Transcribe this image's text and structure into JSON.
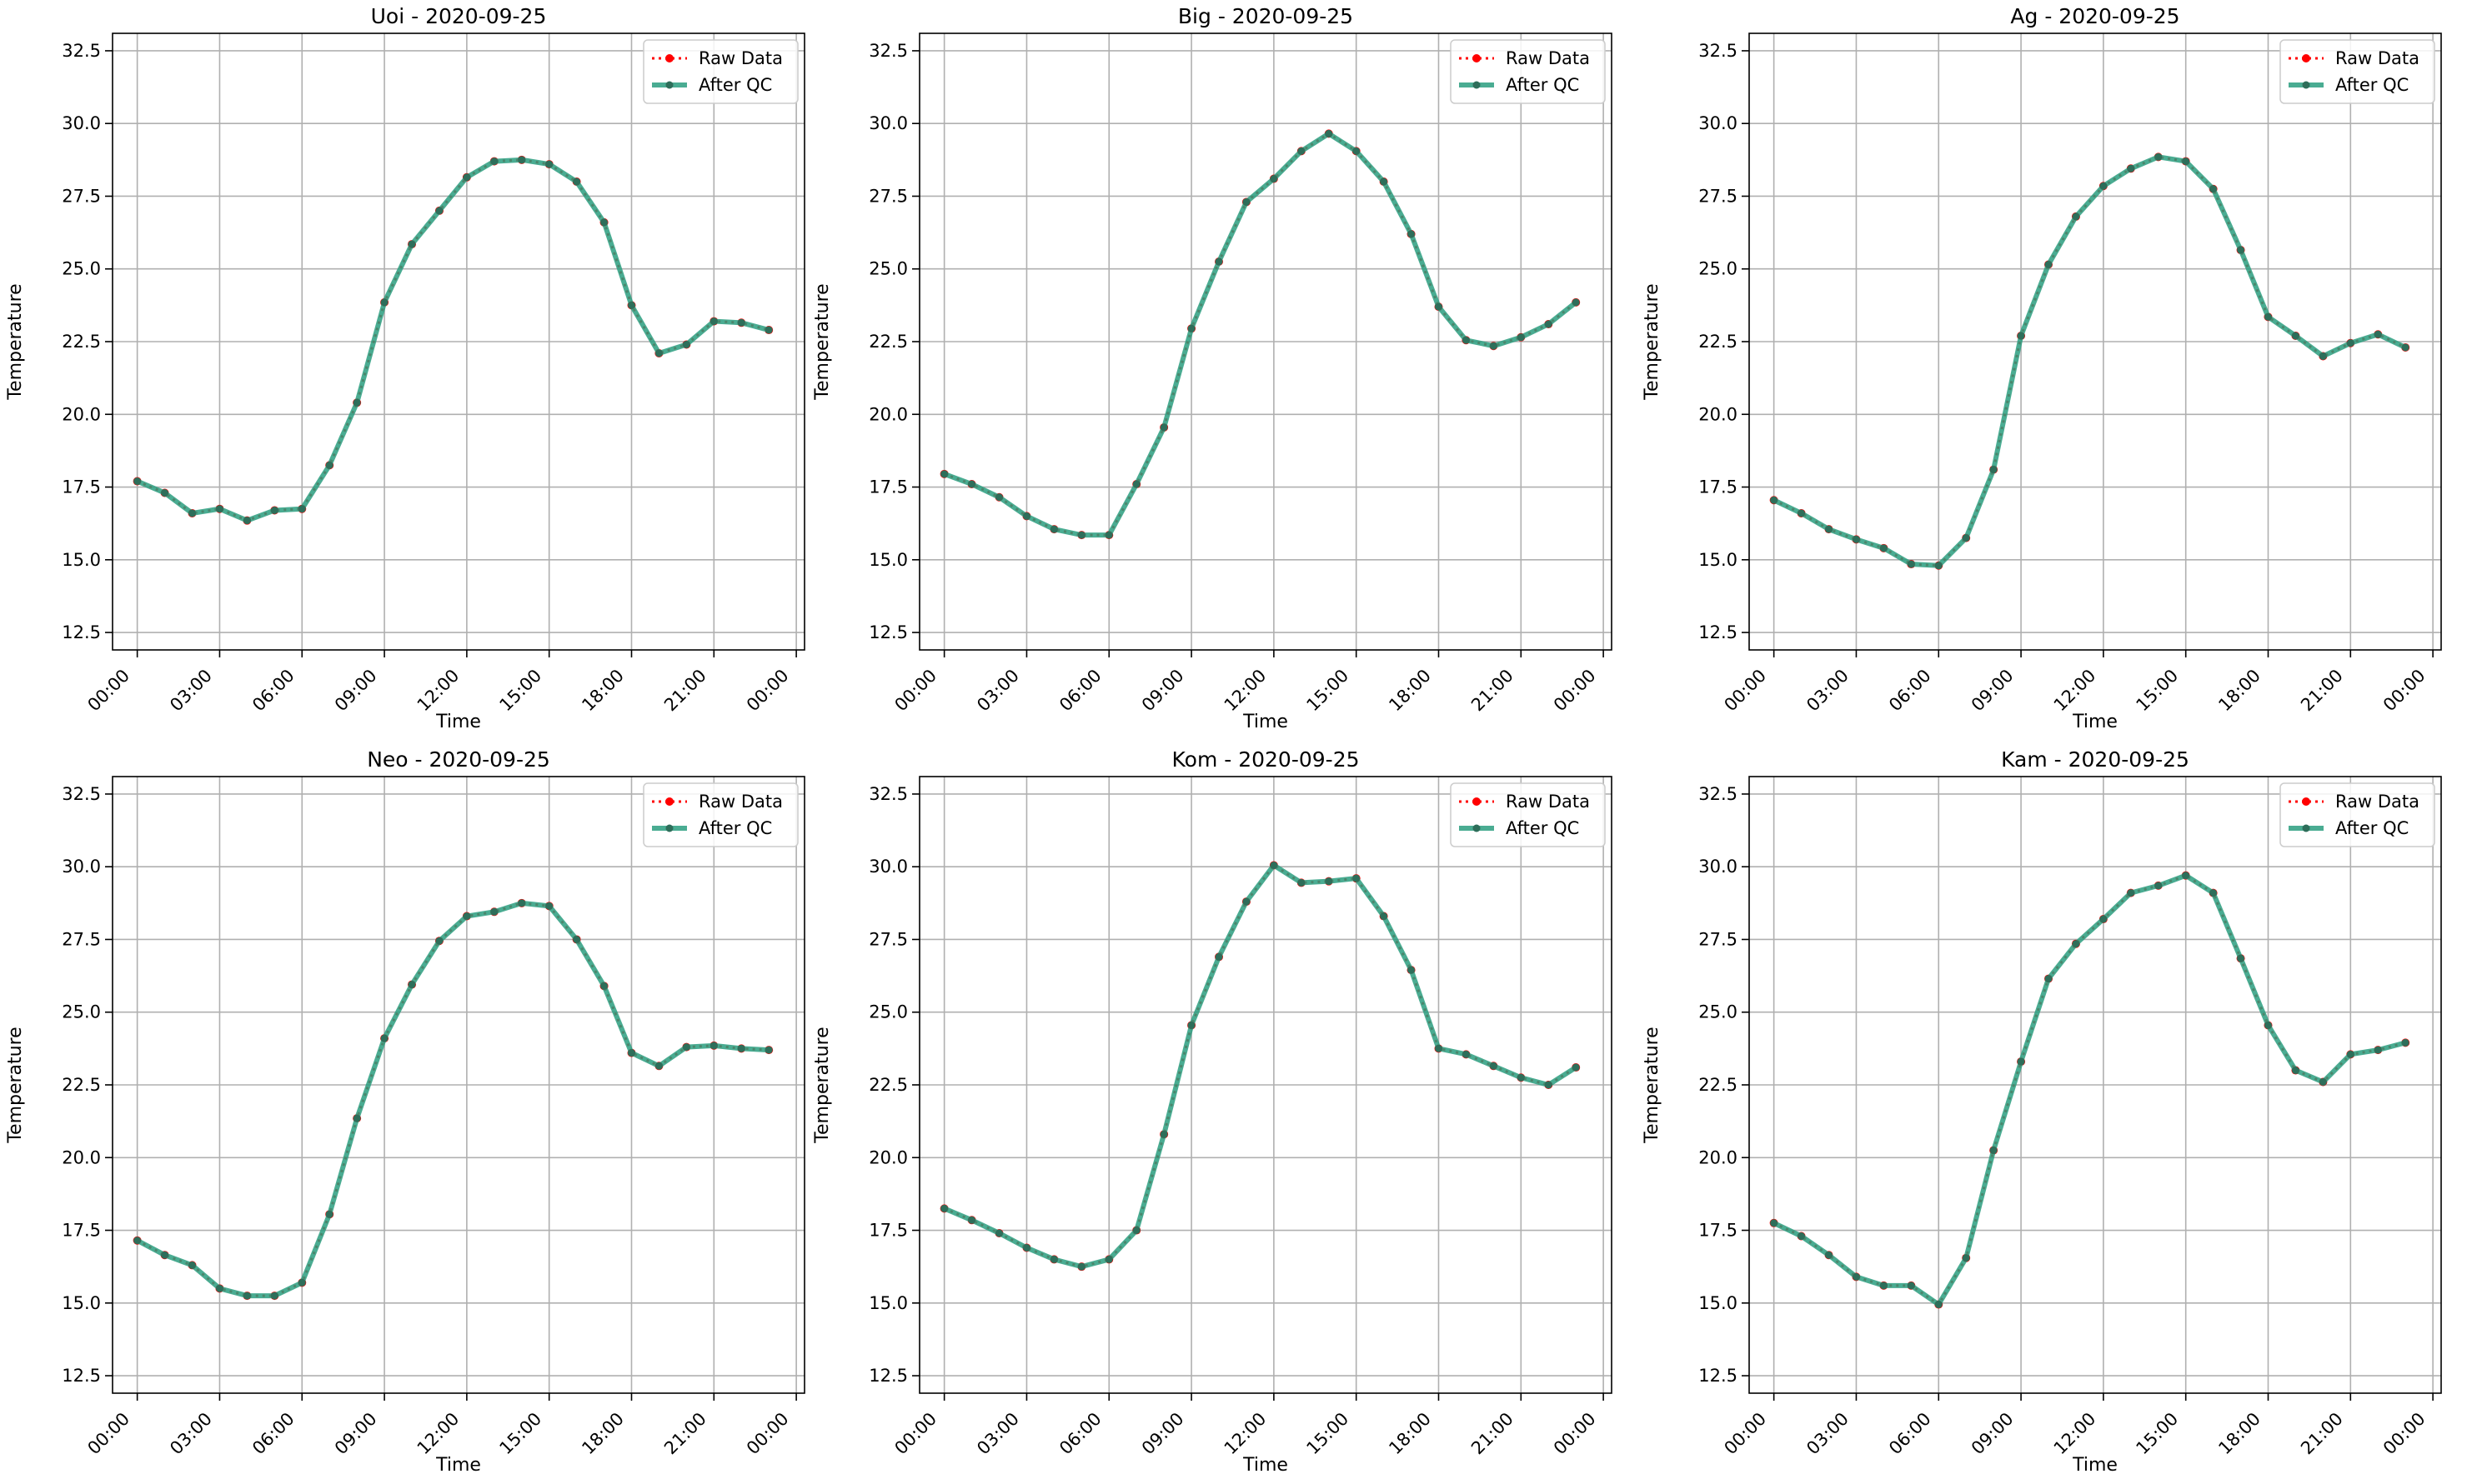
{
  "figure": {
    "background": "#ffffff"
  },
  "style": {
    "raw_color": "#ff0000",
    "qc_color": "#2a9d7f",
    "grid_color": "#b0b0b0",
    "axis_color": "#000000"
  },
  "common": {
    "xlabel": "Time",
    "ylabel": "Temperature",
    "legend": [
      "Raw Data",
      "After QC"
    ],
    "x_ticks": [
      "00:00",
      "03:00",
      "06:00",
      "09:00",
      "12:00",
      "15:00",
      "18:00",
      "21:00",
      "00:00"
    ],
    "y_ticks": [
      "12.5",
      "15.0",
      "17.5",
      "20.0",
      "22.5",
      "25.0",
      "27.5",
      "30.0",
      "32.5"
    ]
  },
  "chart_data": [
    {
      "type": "line",
      "title": "Uoi - 2020-09-25",
      "xlabel": "Time",
      "ylabel": "Temperature",
      "x": [
        0,
        1,
        2,
        3,
        4,
        5,
        6,
        7,
        8,
        9,
        10,
        11,
        12,
        13,
        14,
        15,
        16,
        17,
        18,
        19,
        20,
        21,
        22,
        23
      ],
      "xlim": [
        -0.9,
        24.3
      ],
      "ylim": [
        11.9,
        33.1
      ],
      "grid": true,
      "legend_position": "upper right",
      "series": [
        {
          "name": "Raw Data",
          "values": [
            17.7,
            17.3,
            16.6,
            16.75,
            16.35,
            16.7,
            16.75,
            18.25,
            20.4,
            23.85,
            25.85,
            27.0,
            28.15,
            28.7,
            28.75,
            28.6,
            28.0,
            26.6,
            23.75,
            22.1,
            22.4,
            23.2,
            23.15,
            22.9
          ]
        },
        {
          "name": "After QC",
          "values": [
            17.7,
            17.3,
            16.6,
            16.75,
            16.35,
            16.7,
            16.75,
            18.25,
            20.4,
            23.85,
            25.85,
            27.0,
            28.15,
            28.7,
            28.75,
            28.6,
            28.0,
            26.6,
            23.75,
            22.1,
            22.4,
            23.2,
            23.15,
            22.9
          ]
        }
      ]
    },
    {
      "type": "line",
      "title": "Big - 2020-09-25",
      "xlabel": "Time",
      "ylabel": "Temperature",
      "x": [
        0,
        1,
        2,
        3,
        4,
        5,
        6,
        7,
        8,
        9,
        10,
        11,
        12,
        13,
        14,
        15,
        16,
        17,
        18,
        19,
        20,
        21,
        22,
        23
      ],
      "xlim": [
        -0.9,
        24.3
      ],
      "ylim": [
        11.9,
        33.1
      ],
      "grid": true,
      "legend_position": "upper right",
      "series": [
        {
          "name": "Raw Data",
          "values": [
            17.95,
            17.6,
            17.15,
            16.5,
            16.05,
            15.85,
            15.85,
            17.6,
            19.55,
            22.95,
            25.25,
            27.3,
            28.1,
            29.05,
            29.65,
            29.05,
            28.0,
            26.2,
            23.7,
            22.55,
            22.35,
            22.65,
            23.1,
            23.85
          ]
        },
        {
          "name": "After QC",
          "values": [
            17.95,
            17.6,
            17.15,
            16.5,
            16.05,
            15.85,
            15.85,
            17.6,
            19.55,
            22.95,
            25.25,
            27.3,
            28.1,
            29.05,
            29.65,
            29.05,
            28.0,
            26.2,
            23.7,
            22.55,
            22.35,
            22.65,
            23.1,
            23.85
          ]
        }
      ]
    },
    {
      "type": "line",
      "title": "Ag - 2020-09-25",
      "xlabel": "Time",
      "ylabel": "Temperature",
      "x": [
        0,
        1,
        2,
        3,
        4,
        5,
        6,
        7,
        8,
        9,
        10,
        11,
        12,
        13,
        14,
        15,
        16,
        17,
        18,
        19,
        20,
        21,
        22,
        23
      ],
      "xlim": [
        -0.9,
        24.3
      ],
      "ylim": [
        11.9,
        33.1
      ],
      "grid": true,
      "legend_position": "upper right",
      "series": [
        {
          "name": "Raw Data",
          "values": [
            17.05,
            16.6,
            16.05,
            15.7,
            15.4,
            14.85,
            14.8,
            15.75,
            18.1,
            22.7,
            25.15,
            26.8,
            27.85,
            28.45,
            28.85,
            28.7,
            27.75,
            25.65,
            23.35,
            22.7,
            22.0,
            22.45,
            22.75,
            22.3
          ]
        },
        {
          "name": "After QC",
          "values": [
            17.05,
            16.6,
            16.05,
            15.7,
            15.4,
            14.85,
            14.8,
            15.75,
            18.1,
            22.7,
            25.15,
            26.8,
            27.85,
            28.45,
            28.85,
            28.7,
            27.75,
            25.65,
            23.35,
            22.7,
            22.0,
            22.45,
            22.75,
            22.3
          ]
        }
      ]
    },
    {
      "type": "line",
      "title": "Neo - 2020-09-25",
      "xlabel": "Time",
      "ylabel": "Temperature",
      "x": [
        0,
        1,
        2,
        3,
        4,
        5,
        6,
        7,
        8,
        9,
        10,
        11,
        12,
        13,
        14,
        15,
        16,
        17,
        18,
        19,
        20,
        21,
        22,
        23
      ],
      "xlim": [
        -0.9,
        24.3
      ],
      "ylim": [
        11.9,
        33.1
      ],
      "grid": true,
      "legend_position": "upper right",
      "series": [
        {
          "name": "Raw Data",
          "values": [
            17.15,
            16.65,
            16.3,
            15.5,
            15.25,
            15.25,
            15.7,
            18.05,
            21.35,
            24.1,
            25.95,
            27.45,
            28.3,
            28.45,
            28.75,
            28.65,
            27.5,
            25.9,
            23.6,
            23.15,
            23.8,
            23.85,
            23.75,
            23.7
          ]
        },
        {
          "name": "After QC",
          "values": [
            17.15,
            16.65,
            16.3,
            15.5,
            15.25,
            15.25,
            15.7,
            18.05,
            21.35,
            24.1,
            25.95,
            27.45,
            28.3,
            28.45,
            28.75,
            28.65,
            27.5,
            25.9,
            23.6,
            23.15,
            23.8,
            23.85,
            23.75,
            23.7
          ]
        }
      ]
    },
    {
      "type": "line",
      "title": "Kom - 2020-09-25",
      "xlabel": "Time",
      "ylabel": "Temperature",
      "x": [
        0,
        1,
        2,
        3,
        4,
        5,
        6,
        7,
        8,
        9,
        10,
        11,
        12,
        13,
        14,
        15,
        16,
        17,
        18,
        19,
        20,
        21,
        22,
        23
      ],
      "xlim": [
        -0.9,
        24.3
      ],
      "ylim": [
        11.9,
        33.1
      ],
      "grid": true,
      "legend_position": "upper right",
      "series": [
        {
          "name": "Raw Data",
          "values": [
            18.25,
            17.85,
            17.4,
            16.9,
            16.5,
            16.25,
            16.5,
            17.5,
            20.8,
            24.55,
            26.9,
            28.8,
            30.05,
            29.45,
            29.5,
            29.6,
            28.3,
            26.45,
            23.75,
            23.55,
            23.15,
            22.75,
            22.5,
            23.1
          ]
        },
        {
          "name": "After QC",
          "values": [
            18.25,
            17.85,
            17.4,
            16.9,
            16.5,
            16.25,
            16.5,
            17.5,
            20.8,
            24.55,
            26.9,
            28.8,
            30.05,
            29.45,
            29.5,
            29.6,
            28.3,
            26.45,
            23.75,
            23.55,
            23.15,
            22.75,
            22.5,
            23.1
          ]
        }
      ]
    },
    {
      "type": "line",
      "title": "Kam - 2020-09-25",
      "xlabel": "Time",
      "ylabel": "Temperature",
      "x": [
        0,
        1,
        2,
        3,
        4,
        5,
        6,
        7,
        8,
        9,
        10,
        11,
        12,
        13,
        14,
        15,
        16,
        17,
        18,
        19,
        20,
        21,
        22,
        23
      ],
      "xlim": [
        -0.9,
        24.3
      ],
      "ylim": [
        11.9,
        33.1
      ],
      "grid": true,
      "legend_position": "upper right",
      "series": [
        {
          "name": "Raw Data",
          "values": [
            17.75,
            17.3,
            16.65,
            15.9,
            15.6,
            15.6,
            14.95,
            16.55,
            20.25,
            23.3,
            26.15,
            27.35,
            28.2,
            29.1,
            29.35,
            29.7,
            29.1,
            26.85,
            24.55,
            23.0,
            22.6,
            23.55,
            23.7,
            23.95
          ]
        },
        {
          "name": "After QC",
          "values": [
            17.75,
            17.3,
            16.65,
            15.9,
            15.6,
            15.6,
            14.95,
            16.55,
            20.25,
            23.3,
            26.15,
            27.35,
            28.2,
            29.1,
            29.35,
            29.7,
            29.1,
            26.85,
            24.55,
            23.0,
            22.6,
            23.55,
            23.7,
            23.95
          ]
        }
      ]
    }
  ]
}
